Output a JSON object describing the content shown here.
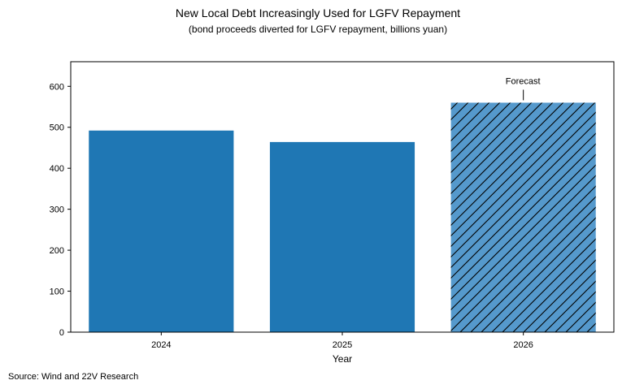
{
  "chart_data": {
    "type": "bar",
    "title": "New Local Debt Increasingly Used for LGFV Repayment",
    "subtitle": "(bond proceeds diverted for LGFV repayment, billions yuan)",
    "xlabel": "Year",
    "ylabel": "",
    "categories": [
      "2024",
      "2025",
      "2026"
    ],
    "values": [
      492,
      464,
      560
    ],
    "ylim": [
      0,
      660
    ],
    "yticks": [
      "0",
      "100",
      "200",
      "300",
      "400",
      "500",
      "600"
    ],
    "grid": false,
    "legend": "none",
    "hatched": [
      false,
      false,
      true
    ],
    "annotation": {
      "text": "Forecast",
      "category": "2026"
    },
    "source": "Source: Wind and 22V Research",
    "colors": {
      "bar": "#1f77b4",
      "bar_forecast": "#5599cc",
      "hatch": "#000000",
      "axis": "#000000"
    }
  }
}
